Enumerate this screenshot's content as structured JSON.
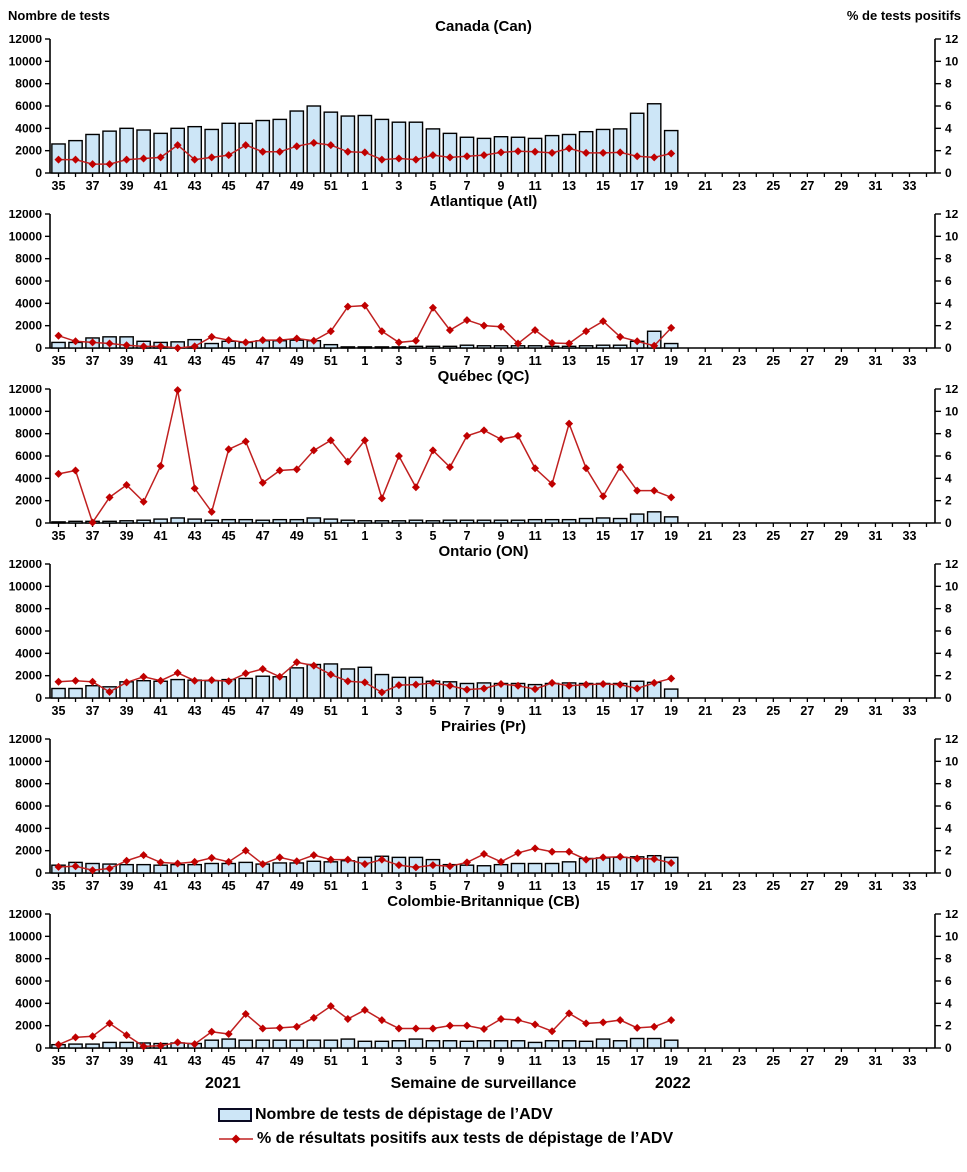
{
  "header": {
    "left_axis_title": "Nombre de tests",
    "right_axis_title": "% de tests positifs"
  },
  "footer": {
    "year_left": "2021",
    "x_axis_title": "Semaine de surveillance",
    "year_right": "2022"
  },
  "legend": {
    "bar_label": "Nombre de tests de dépistage de l’ADV",
    "line_label": "% de résultats positifs aux tests de dépistage de l’ADV"
  },
  "colors": {
    "bar_fill": "#CDE6F7",
    "bar_stroke": "#000000",
    "line": "#C02020",
    "marker": "#C00000",
    "axis": "#000000"
  },
  "chart_data": {
    "type": "bar+line combo, 6 stacked panels, dual y-axes",
    "x_axis": {
      "total_slots": 52,
      "tick_labels": [
        "35",
        "37",
        "39",
        "41",
        "43",
        "45",
        "47",
        "49",
        "51",
        "1",
        "3",
        "5",
        "7",
        "9",
        "11",
        "13",
        "15",
        "17",
        "19",
        "21",
        "23",
        "25",
        "27",
        "29",
        "31",
        "33"
      ],
      "weeks_with_data": [
        35,
        36,
        37,
        38,
        39,
        40,
        41,
        42,
        43,
        44,
        45,
        46,
        47,
        48,
        49,
        50,
        51,
        52,
        1,
        2,
        3,
        4,
        5,
        6,
        7,
        8,
        9,
        10,
        11,
        12,
        13,
        14,
        15,
        16,
        17,
        18,
        19
      ]
    },
    "left_axis": {
      "label": "Nombre de tests",
      "ylim": [
        0,
        12000
      ],
      "ticks": [
        0,
        2000,
        4000,
        6000,
        8000,
        10000,
        12000
      ]
    },
    "right_axis": {
      "label": "% de tests positifs",
      "ylim": [
        0,
        12
      ],
      "ticks": [
        0,
        2,
        4,
        6,
        8,
        10,
        12
      ]
    },
    "panels": [
      {
        "title": "Canada (Can)",
        "tests": [
          2600,
          2900,
          3450,
          3750,
          4000,
          3850,
          3550,
          4000,
          4150,
          3900,
          4450,
          4450,
          4700,
          4800,
          5550,
          6000,
          5450,
          5100,
          5150,
          4800,
          4550,
          4550,
          3950,
          3550,
          3200,
          3100,
          3250,
          3200,
          3100,
          3350,
          3450,
          3700,
          3900,
          3950,
          5350,
          6200,
          3800
        ],
        "pct_positive": [
          1.2,
          1.2,
          0.8,
          0.8,
          1.2,
          1.3,
          1.4,
          2.5,
          1.2,
          1.4,
          1.6,
          2.5,
          1.9,
          1.9,
          2.4,
          2.7,
          2.5,
          1.9,
          1.85,
          1.2,
          1.3,
          1.2,
          1.6,
          1.4,
          1.5,
          1.6,
          1.85,
          1.95,
          1.9,
          1.8,
          2.2,
          1.8,
          1.8,
          1.85,
          1.5,
          1.4,
          1.75
        ]
      },
      {
        "title": "Atlantique (Atl)",
        "tests": [
          500,
          500,
          900,
          1000,
          1000,
          600,
          500,
          550,
          750,
          400,
          600,
          500,
          650,
          650,
          700,
          650,
          300,
          100,
          100,
          100,
          100,
          150,
          150,
          150,
          250,
          200,
          200,
          200,
          200,
          150,
          150,
          200,
          250,
          250,
          600,
          1500,
          400
        ],
        "pct_positive": [
          1.1,
          0.6,
          0.5,
          0.4,
          0.25,
          0.15,
          0.15,
          0.0,
          0.15,
          1.0,
          0.7,
          0.5,
          0.7,
          0.7,
          0.85,
          0.65,
          1.5,
          3.7,
          3.8,
          1.5,
          0.5,
          0.65,
          3.6,
          1.6,
          2.5,
          2.0,
          1.9,
          0.4,
          1.6,
          0.45,
          0.4,
          1.5,
          2.4,
          1.0,
          0.6,
          0.2,
          1.8
        ]
      },
      {
        "title": "Québec (QC)",
        "tests": [
          100,
          150,
          150,
          150,
          200,
          250,
          350,
          450,
          350,
          250,
          300,
          300,
          250,
          300,
          300,
          450,
          350,
          250,
          200,
          200,
          200,
          250,
          200,
          250,
          250,
          250,
          250,
          250,
          300,
          300,
          300,
          400,
          450,
          400,
          800,
          1000,
          550
        ],
        "pct_positive": [
          4.4,
          4.7,
          0.05,
          2.3,
          3.4,
          1.9,
          5.1,
          11.9,
          3.1,
          1.0,
          6.6,
          7.3,
          3.6,
          4.7,
          4.8,
          6.5,
          7.4,
          5.5,
          7.4,
          2.2,
          6.0,
          3.2,
          6.5,
          5.0,
          7.8,
          8.3,
          7.5,
          7.8,
          4.9,
          3.5,
          8.9,
          4.9,
          2.4,
          5.0,
          2.9,
          2.9,
          2.3
        ]
      },
      {
        "title": "Ontario (ON)",
        "tests": [
          850,
          850,
          1100,
          1000,
          1450,
          1550,
          1500,
          1650,
          1600,
          1550,
          1650,
          1750,
          1950,
          1900,
          2700,
          3000,
          3050,
          2600,
          2750,
          2100,
          1850,
          1850,
          1500,
          1450,
          1300,
          1350,
          1300,
          1300,
          1200,
          1300,
          1350,
          1300,
          1300,
          1300,
          1500,
          1400,
          800
        ],
        "pct_positive": [
          1.45,
          1.55,
          1.45,
          0.55,
          1.4,
          1.9,
          1.55,
          2.25,
          1.55,
          1.6,
          1.5,
          2.2,
          2.6,
          1.9,
          3.2,
          2.9,
          2.1,
          1.5,
          1.4,
          0.5,
          1.15,
          1.2,
          1.35,
          1.1,
          0.75,
          0.85,
          1.25,
          1.1,
          0.8,
          1.35,
          1.1,
          1.2,
          1.25,
          1.2,
          0.85,
          1.35,
          1.75
        ]
      },
      {
        "title": "Prairies (Pr)",
        "tests": [
          700,
          950,
          850,
          800,
          750,
          750,
          700,
          750,
          750,
          850,
          850,
          950,
          800,
          900,
          900,
          1050,
          1000,
          1100,
          1400,
          1500,
          1400,
          1400,
          1200,
          750,
          700,
          650,
          750,
          850,
          850,
          850,
          1000,
          1300,
          1350,
          1400,
          1450,
          1550,
          1400
        ],
        "pct_positive": [
          0.55,
          0.6,
          0.25,
          0.4,
          1.1,
          1.6,
          0.95,
          0.85,
          1.0,
          1.35,
          1.0,
          2.0,
          0.8,
          1.4,
          1.05,
          1.6,
          1.2,
          1.2,
          0.8,
          1.2,
          0.7,
          0.5,
          0.7,
          0.6,
          0.95,
          1.7,
          1.0,
          1.8,
          2.2,
          1.9,
          1.9,
          1.2,
          1.4,
          1.45,
          1.3,
          1.25,
          0.9
        ]
      },
      {
        "title": "Colombie-Britannique (CB)",
        "tests": [
          300,
          350,
          350,
          500,
          500,
          450,
          400,
          450,
          400,
          700,
          800,
          700,
          700,
          700,
          700,
          700,
          700,
          800,
          600,
          600,
          650,
          800,
          650,
          650,
          600,
          650,
          650,
          650,
          500,
          650,
          650,
          600,
          800,
          650,
          850,
          850,
          700
        ],
        "pct_positive": [
          0.3,
          0.95,
          1.05,
          2.2,
          1.15,
          0.15,
          0.2,
          0.5,
          0.35,
          1.45,
          1.25,
          3.05,
          1.75,
          1.8,
          1.9,
          2.7,
          3.75,
          2.6,
          3.4,
          2.5,
          1.75,
          1.75,
          1.75,
          2.0,
          2.0,
          1.7,
          2.6,
          2.5,
          2.1,
          1.5,
          3.1,
          2.2,
          2.3,
          2.5,
          1.8,
          1.9,
          2.5
        ]
      }
    ]
  }
}
